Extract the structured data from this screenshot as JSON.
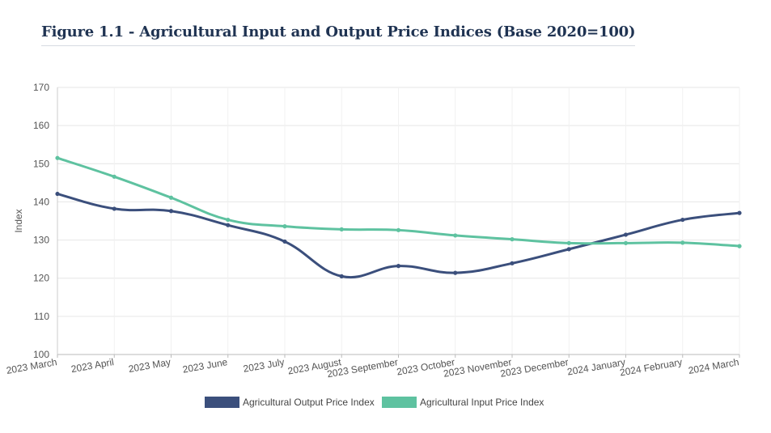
{
  "figure_title": "Figure 1.1 - Agricultural Input and Output Price Indices (Base 2020=100)",
  "colors": {
    "output": "#3b4f7c",
    "input": "#5ec2a0",
    "grid": "#e6e6e6",
    "axis": "#cccccc"
  },
  "chart_data": {
    "type": "line",
    "title": "Figure 1.1 - Agricultural Input and Output Price Indices (Base 2020=100)",
    "xlabel": "",
    "ylabel": "Index",
    "ylim": [
      100,
      170
    ],
    "yticks": [
      100,
      110,
      120,
      130,
      140,
      150,
      160,
      170
    ],
    "grid": true,
    "legend_position": "bottom",
    "categories": [
      "2023 March",
      "2023 April",
      "2023 May",
      "2023 June",
      "2023 July",
      "2023 August",
      "2023 September",
      "2023 October",
      "2023 November",
      "2023 December",
      "2024 January",
      "2024 February",
      "2024 March"
    ],
    "series": [
      {
        "name": "Agricultural Output Price Index",
        "color": "#3b4f7c",
        "values": [
          142.1,
          138.2,
          137.6,
          133.9,
          129.6,
          120.5,
          123.2,
          121.4,
          123.9,
          127.6,
          131.4,
          135.3,
          137.1
        ]
      },
      {
        "name": "Agricultural Input Price Index",
        "color": "#5ec2a0",
        "values": [
          151.5,
          146.6,
          141.1,
          135.3,
          133.6,
          132.8,
          132.6,
          131.2,
          130.2,
          129.2,
          129.2,
          129.3,
          128.4
        ]
      }
    ]
  }
}
